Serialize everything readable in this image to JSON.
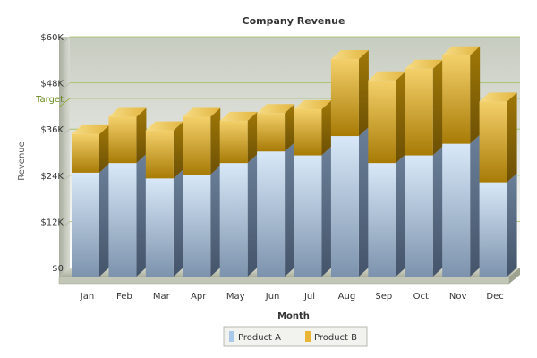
{
  "chart_data": {
    "type": "bar",
    "stacked": true,
    "title": "Company Revenue",
    "xlabel": "Month",
    "ylabel": "Revenue",
    "ylim": [
      0,
      60000
    ],
    "y_ticks": [
      0,
      12000,
      24000,
      36000,
      48000,
      60000
    ],
    "y_tick_labels": [
      "$0",
      "$12K",
      "$24K",
      "$36K",
      "$48K",
      "$60K"
    ],
    "categories": [
      "Jan",
      "Feb",
      "Mar",
      "Apr",
      "May",
      "Jun",
      "Jul",
      "Aug",
      "Sep",
      "Oct",
      "Nov",
      "Dec"
    ],
    "series": [
      {
        "name": "Product A",
        "color": "#a9c8ea",
        "values": [
          27000,
          29500,
          25500,
          26500,
          29500,
          32500,
          31500,
          36500,
          29500,
          31500,
          34500,
          24500
        ]
      },
      {
        "name": "Product B",
        "color": "#e8b534",
        "values": [
          10000,
          12000,
          12500,
          15000,
          11000,
          10000,
          12000,
          20000,
          21500,
          22500,
          23000,
          21000
        ]
      }
    ],
    "target": {
      "label": "Target",
      "value": 44000,
      "color": "#8aaf2e"
    },
    "grid": true,
    "legend": "bottom"
  }
}
